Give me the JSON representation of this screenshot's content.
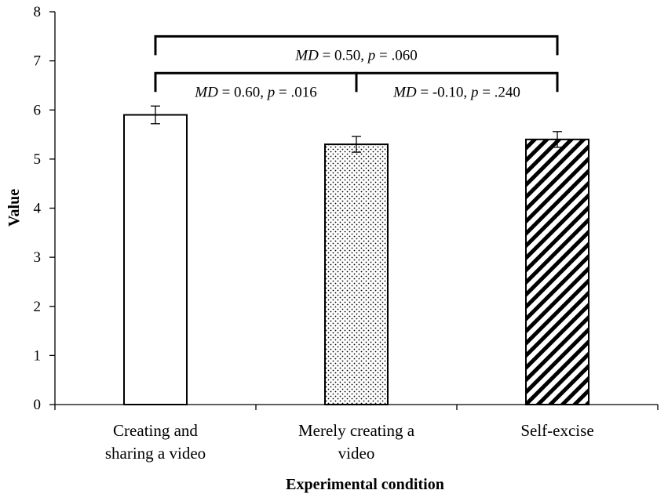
{
  "chart_data": {
    "type": "bar",
    "xlabel": "Experimental condition",
    "ylabel": "Value",
    "ylim": [
      0,
      8
    ],
    "yticks": [
      0,
      1,
      2,
      3,
      4,
      5,
      6,
      7,
      8
    ],
    "categories": [
      {
        "lines": [
          "Creating and",
          "sharing a video"
        ],
        "value": 5.9,
        "error": 0.18,
        "pattern": "none"
      },
      {
        "lines": [
          "Merely creating a",
          "video"
        ],
        "value": 5.3,
        "error": 0.16,
        "pattern": "dots"
      },
      {
        "lines": [
          "Self-excise"
        ],
        "value": 5.4,
        "error": 0.16,
        "pattern": "diagonal"
      }
    ],
    "comparisons": [
      {
        "from": 0,
        "to": 2,
        "level": 7.5,
        "label": {
          "md": "MD",
          "md_value": " = 0.50, ",
          "p": "p",
          "p_value": " = .060"
        }
      },
      {
        "from": 0,
        "to": 1,
        "level": 6.75,
        "label": {
          "md": "MD",
          "md_value": " = 0.60, ",
          "p": "p",
          "p_value": " = .016"
        }
      },
      {
        "from": 1,
        "to": 2,
        "level": 6.75,
        "label": {
          "md": "MD",
          "md_value": " = -0.10, ",
          "p": "p",
          "p_value": " = .240"
        }
      }
    ],
    "grid": false,
    "colors": {
      "bar_fill": "#ffffff",
      "bar_stroke": "#000000"
    }
  }
}
